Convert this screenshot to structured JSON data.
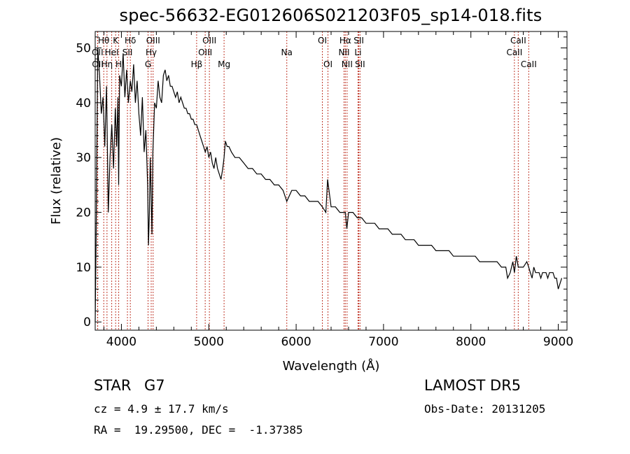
{
  "title": "spec-56632-EG012606S021203F05_sp14-018.fits",
  "info": {
    "class_label": "STAR",
    "subclass": "G7",
    "survey": "LAMOST DR5",
    "cz": "cz = 4.9 ± 17.7 km/s",
    "obs_date": "Obs-Date: 20131205",
    "radec": "RA =  19.29500, DEC =  -1.37385"
  },
  "chart_data": {
    "type": "line",
    "title": "spec-56632-EG012606S021203F05_sp14-018.fits",
    "xlabel": "Wavelength (Å)",
    "ylabel": "Flux (relative)",
    "xlim": [
      3700,
      9100
    ],
    "ylim": [
      -1.5,
      53
    ],
    "xticks": [
      4000,
      5000,
      6000,
      7000,
      8000,
      9000
    ],
    "yticks": [
      0,
      10,
      20,
      30,
      40,
      50
    ],
    "grid": false,
    "series": [
      {
        "name": "",
        "x": [
          3700,
          3710,
          3730,
          3750,
          3770,
          3790,
          3810,
          3830,
          3850,
          3870,
          3890,
          3910,
          3930,
          3945,
          3960,
          3968,
          3980,
          4000,
          4020,
          4040,
          4060,
          4080,
          4102,
          4120,
          4140,
          4160,
          4180,
          4200,
          4220,
          4240,
          4260,
          4280,
          4300,
          4310,
          4320,
          4330,
          4340,
          4350,
          4360,
          4380,
          4400,
          4420,
          4440,
          4460,
          4480,
          4500,
          4520,
          4540,
          4560,
          4580,
          4600,
          4620,
          4640,
          4660,
          4680,
          4700,
          4720,
          4740,
          4760,
          4780,
          4800,
          4820,
          4840,
          4861,
          4880,
          4900,
          4920,
          4940,
          4960,
          4980,
          5000,
          5020,
          5040,
          5060,
          5080,
          5100,
          5120,
          5140,
          5160,
          5175,
          5190,
          5210,
          5230,
          5260,
          5300,
          5350,
          5400,
          5450,
          5500,
          5550,
          5600,
          5650,
          5700,
          5750,
          5800,
          5850,
          5893,
          5950,
          6000,
          6050,
          6100,
          6150,
          6200,
          6250,
          6300,
          6340,
          6360,
          6400,
          6450,
          6500,
          6540,
          6563,
          6580,
          6600,
          6650,
          6700,
          6750,
          6800,
          6850,
          6900,
          6950,
          7000,
          7050,
          7100,
          7150,
          7200,
          7250,
          7300,
          7350,
          7400,
          7450,
          7500,
          7550,
          7600,
          7650,
          7700,
          7750,
          7800,
          7850,
          7900,
          7950,
          8000,
          8050,
          8100,
          8150,
          8200,
          8250,
          8300,
          8350,
          8400,
          8420,
          8450,
          8480,
          8498,
          8520,
          8542,
          8560,
          8600,
          8640,
          8662,
          8680,
          8700,
          8720,
          8740,
          8760,
          8780,
          8800,
          8820,
          8840,
          8860,
          8880,
          8900,
          8920,
          8940,
          8960,
          8980,
          9000,
          9020,
          9040
        ],
        "y": [
          0,
          14,
          50,
          45,
          38,
          41,
          32,
          43,
          20,
          30,
          36,
          28,
          39,
          32,
          41,
          25,
          45,
          43,
          49,
          41,
          46,
          40,
          44,
          42,
          47,
          40,
          44,
          38,
          34,
          41,
          31,
          35,
          25,
          14,
          20,
          30,
          23,
          16,
          31,
          40,
          39,
          44,
          41,
          40,
          45,
          46,
          44,
          45,
          43,
          43,
          42,
          41,
          42,
          40,
          41,
          40,
          39,
          39,
          38,
          38,
          37,
          37,
          36,
          36,
          35,
          34,
          33,
          32,
          31,
          32,
          30,
          31,
          29,
          28,
          30,
          28,
          27,
          26,
          28,
          30,
          33,
          32,
          32,
          31,
          30,
          30,
          29,
          28,
          28,
          27,
          27,
          26,
          26,
          25,
          25,
          24,
          22,
          24,
          24,
          23,
          23,
          22,
          22,
          22,
          21,
          20,
          26,
          21,
          21,
          20,
          20,
          20,
          17,
          20,
          20,
          19,
          19,
          18,
          18,
          18,
          17,
          17,
          17,
          16,
          16,
          16,
          15,
          15,
          15,
          14,
          14,
          14,
          14,
          13,
          13,
          13,
          13,
          12,
          12,
          12,
          12,
          12,
          12,
          11,
          11,
          11,
          11,
          11,
          10,
          10,
          8,
          9,
          11,
          9,
          12,
          10,
          10,
          10,
          11,
          10,
          9,
          8,
          10,
          9,
          9,
          9,
          8,
          9,
          9,
          9,
          8,
          9,
          9,
          9,
          8,
          8,
          6,
          7,
          8
        ]
      }
    ],
    "lines": [
      {
        "label": "Hθ",
        "x": 3798,
        "row": 1
      },
      {
        "label": "OII",
        "x": 3727,
        "row": 2
      },
      {
        "label": "OII",
        "x": 3729,
        "row": 3
      },
      {
        "label": "K",
        "x": 3934,
        "row": 1
      },
      {
        "label": "HeI",
        "x": 3889,
        "row": 2
      },
      {
        "label": "Hη",
        "x": 3835,
        "row": 3
      },
      {
        "label": "H",
        "x": 3969,
        "row": 3
      },
      {
        "label": "Hδ",
        "x": 4102,
        "row": 1
      },
      {
        "label": "SII",
        "x": 4069,
        "row": 2
      },
      {
        "label": "OIII",
        "x": 4363,
        "row": 1
      },
      {
        "label": "Hγ",
        "x": 4341,
        "row": 2
      },
      {
        "label": "G",
        "x": 4305,
        "row": 3
      },
      {
        "label": "Hβ",
        "x": 4861,
        "row": 3
      },
      {
        "label": "OIII",
        "x": 5007,
        "row": 1
      },
      {
        "label": "OIII",
        "x": 4959,
        "row": 2
      },
      {
        "label": "Mg",
        "x": 5175,
        "row": 3
      },
      {
        "label": "Na",
        "x": 5893,
        "row": 2
      },
      {
        "label": "OI",
        "x": 6300,
        "row": 1
      },
      {
        "label": "OI",
        "x": 6364,
        "row": 3
      },
      {
        "label": "Hα",
        "x": 6563,
        "row": 1
      },
      {
        "label": "NII",
        "x": 6548,
        "row": 2
      },
      {
        "label": "NII",
        "x": 6583,
        "row": 3
      },
      {
        "label": "SII",
        "x": 6717,
        "row": 1
      },
      {
        "label": "Li",
        "x": 6708,
        "row": 2
      },
      {
        "label": "SII",
        "x": 6731,
        "row": 3
      },
      {
        "label": "CaII",
        "x": 8542,
        "row": 1
      },
      {
        "label": "CaII",
        "x": 8498,
        "row": 2
      },
      {
        "label": "CaII",
        "x": 8662,
        "row": 3
      }
    ],
    "line_color": "#c0392b"
  }
}
